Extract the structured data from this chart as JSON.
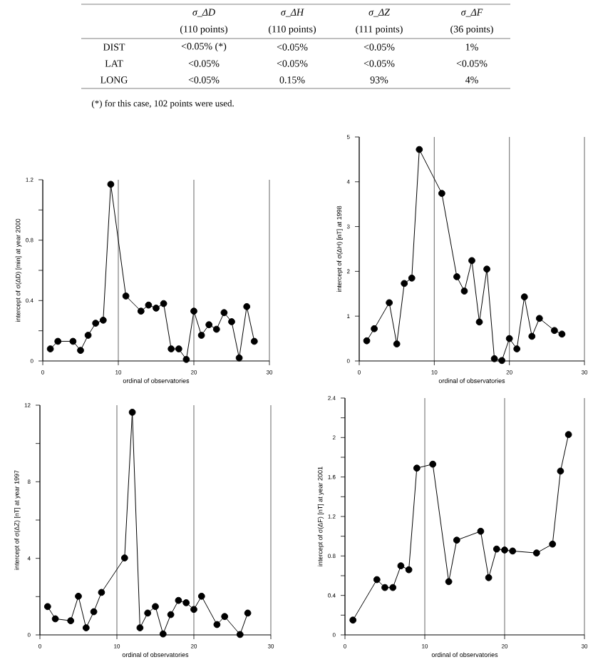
{
  "chart_data": [
    {
      "type": "other",
      "annotations": [
        "σ_ΔD",
        "σ_ΔH",
        "σ_ΔZ",
        "σ_ΔF",
        "(110 points)",
        "(110 points)",
        "(111 points)",
        "(36 points)",
        "DIST",
        "<0.05% (*)",
        "<0.05%",
        "<0.05%",
        "1%",
        "LAT",
        "<0.05%",
        "<0.05%",
        "<0.05%",
        "<0.05%",
        "LONG",
        "<0.05%",
        "0.15%",
        "93%",
        "4%",
        "(*) for this case, 102 points were used."
      ]
    },
    {
      "type": "line",
      "xlabel": "ordinal of observatories",
      "ylabel": "intercept of σ(ΔD) [min] at year 2000",
      "color": "#000000",
      "marker": "circle",
      "grid": "x",
      "x": [
        1,
        2,
        4,
        5,
        6,
        7,
        8,
        9,
        11,
        13,
        14,
        15,
        16,
        17,
        18,
        19,
        20,
        21,
        22,
        23,
        24,
        25,
        26,
        27,
        28
      ],
      "values": [
        0.08,
        0.13,
        0.13,
        0.07,
        0.17,
        0.25,
        0.27,
        1.17,
        0.43,
        0.33,
        0.37,
        0.35,
        0.38,
        0.08,
        0.08,
        0.01,
        0.33,
        0.17,
        0.24,
        0.21,
        0.32,
        0.26,
        0.02,
        0.36,
        0.13
      ],
      "xlim": [
        0,
        30
      ],
      "ylim": [
        0,
        1.2
      ],
      "xticks": [
        0,
        10,
        20,
        30
      ],
      "yticks": [
        0,
        {
          "value": 0.2,
          "label": null
        },
        0.4,
        {
          "value": 0.6,
          "label": null
        },
        0.8,
        {
          "value": 1.0,
          "label": null
        },
        1.2
      ]
    },
    {
      "type": "line",
      "xlabel": "ordinal of observatories",
      "ylabel": "intercept of σ(ΔH) [nT] at 1998",
      "color": "#000000",
      "marker": "circle",
      "grid": "x",
      "x": [
        1,
        2,
        4,
        5,
        6,
        7,
        8,
        11,
        13,
        14,
        15,
        16,
        17,
        18,
        19,
        20,
        21,
        22,
        23,
        24,
        26,
        27
      ],
      "values": [
        0.45,
        0.72,
        1.3,
        0.38,
        1.73,
        1.85,
        4.72,
        3.74,
        1.88,
        1.56,
        2.24,
        0.87,
        2.05,
        0.05,
        0.01,
        0.5,
        0.27,
        1.43,
        0.55,
        0.95,
        0.68,
        0.6
      ],
      "xlim": [
        0,
        30
      ],
      "ylim": [
        0,
        5
      ],
      "xticks": [
        0,
        10,
        20,
        30
      ],
      "yticks": [
        0,
        1,
        2,
        3,
        4,
        5
      ]
    },
    {
      "type": "line",
      "xlabel": "ordinal of observatories",
      "ylabel": "intercept of σ(ΔZ) [nT] at year 1997",
      "color": "#000000",
      "marker": "circle",
      "grid": "x",
      "x": [
        1,
        2,
        4,
        5,
        6,
        7,
        8,
        11,
        12,
        13,
        14,
        15,
        16,
        17,
        18,
        19,
        20,
        21,
        23,
        24,
        26,
        27
      ],
      "values": [
        1.48,
        0.84,
        0.74,
        2.02,
        0.37,
        1.21,
        2.22,
        4.02,
        11.63,
        0.37,
        1.14,
        1.48,
        0.05,
        1.06,
        1.8,
        1.68,
        1.33,
        2.02,
        0.54,
        0.96,
        0.02,
        1.14
      ],
      "xlim": [
        0,
        30
      ],
      "ylim": [
        0,
        12
      ],
      "xticks": [
        0,
        10,
        20,
        30
      ],
      "yticks": [
        0,
        {
          "value": 2,
          "label": null
        },
        4,
        {
          "value": 6,
          "label": null
        },
        8,
        {
          "value": 10,
          "label": null
        },
        12
      ]
    },
    {
      "type": "line",
      "xlabel": "ordinal of observatories",
      "ylabel": "intercept of σ(ΔF) [nT] at year 2001",
      "color": "#000000",
      "marker": "circle",
      "grid": "x",
      "x": [
        1,
        4,
        5,
        6,
        7,
        8,
        9,
        11,
        13,
        14,
        17,
        18,
        19,
        20,
        21,
        24,
        26,
        27,
        28
      ],
      "values": [
        0.15,
        0.56,
        0.48,
        0.48,
        0.7,
        0.66,
        1.69,
        1.73,
        0.54,
        0.96,
        1.05,
        0.58,
        0.87,
        0.86,
        0.85,
        0.83,
        0.92,
        1.66,
        2.03
      ],
      "xlim": [
        0,
        30
      ],
      "ylim": [
        0,
        2.4
      ],
      "xticks": [
        0,
        10,
        20,
        30
      ],
      "yticks": [
        0,
        {
          "value": 0.2,
          "label": null
        },
        0.4,
        {
          "value": 0.6,
          "label": null
        },
        0.8,
        {
          "value": 1.0,
          "label": null
        },
        1.2,
        {
          "value": 1.4,
          "label": null
        },
        1.6,
        {
          "value": 1.8,
          "label": null
        },
        2,
        {
          "value": 2.2,
          "label": null
        },
        2.4
      ]
    }
  ]
}
